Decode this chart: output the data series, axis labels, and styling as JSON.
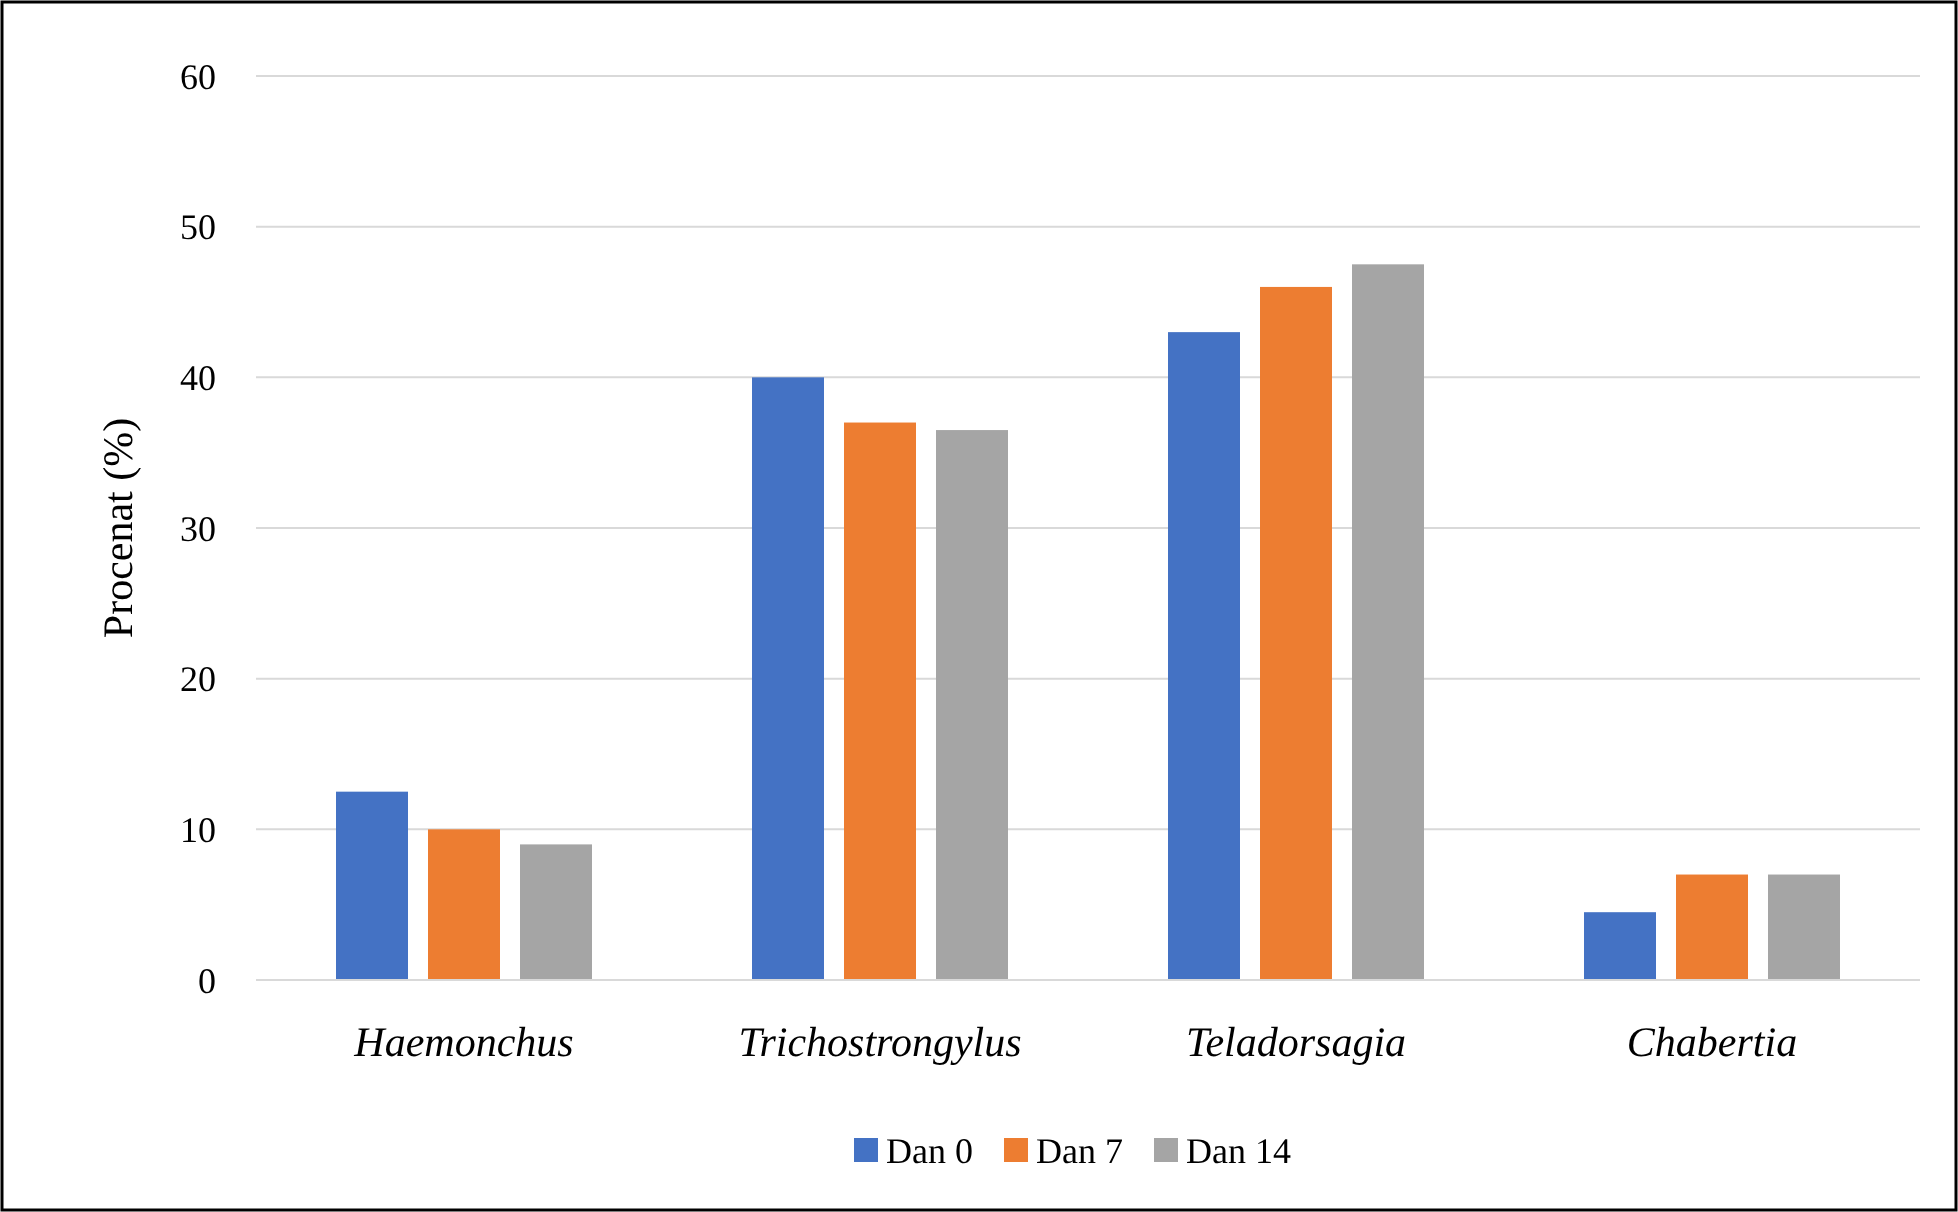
{
  "chart_data": {
    "type": "bar",
    "ylabel": "Procenat (%)",
    "categories": [
      "Haemonchus",
      "Trichostrongylus",
      "Teladorsagia",
      "Chabertia"
    ],
    "series": [
      {
        "name": "Dan 0",
        "color": "#4472c4",
        "values": [
          12.5,
          40,
          43,
          4.5
        ]
      },
      {
        "name": "Dan 7",
        "color": "#ed7d31",
        "values": [
          10,
          37,
          46,
          7
        ]
      },
      {
        "name": "Dan 14",
        "color": "#a5a5a5",
        "values": [
          9,
          36.5,
          47.5,
          7
        ]
      }
    ],
    "ylim": [
      0,
      60
    ],
    "yticks": [
      0,
      10,
      20,
      30,
      40,
      50,
      60
    ],
    "grid": "y",
    "legend": "bottom"
  }
}
